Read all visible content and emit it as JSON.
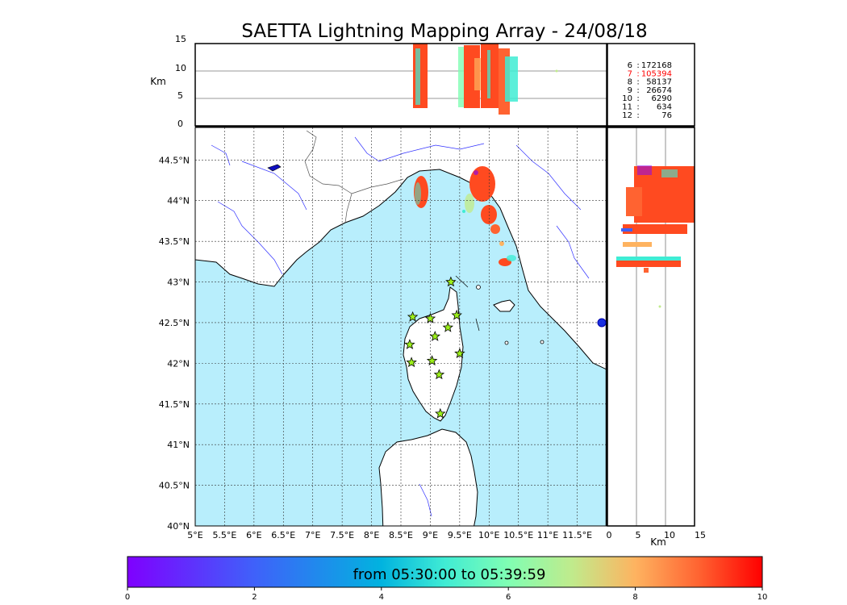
{
  "title": "SAETTA Lightning Mapping Array - 24/08/18",
  "altitude_panel": {
    "ylabel": "Km",
    "yticks": [
      "15",
      "10",
      "5",
      "0"
    ]
  },
  "side_panel": {
    "xlabel": "Km",
    "xticks": [
      "0",
      "5",
      "10",
      "15"
    ]
  },
  "map": {
    "lon_ticks": [
      "5°E",
      "5.5°E",
      "6°E",
      "6.5°E",
      "7°E",
      "7.5°E",
      "8°E",
      "8.5°E",
      "9°E",
      "9.5°E",
      "10°E",
      "10.5°E",
      "11°E",
      "11.5°E"
    ],
    "lat_ticks": [
      "44.5°N",
      "44°N",
      "43.5°N",
      "43°N",
      "42.5°N",
      "42°N",
      "41.5°N",
      "41°N",
      "40.5°N",
      "40°N"
    ],
    "sea_color": "#b8eefc",
    "grid": true,
    "station_marker": "star-icon"
  },
  "legend_counts": [
    {
      "n": "6",
      "count": "172168",
      "highlight": false
    },
    {
      "n": "7",
      "count": "105394",
      "highlight": true
    },
    {
      "n": "8",
      "count": "58137",
      "highlight": false
    },
    {
      "n": "9",
      "count": "26674",
      "highlight": false
    },
    {
      "n": "10",
      "count": "6290",
      "highlight": false
    },
    {
      "n": "11",
      "count": "634",
      "highlight": false
    },
    {
      "n": "12",
      "count": "76",
      "highlight": false
    }
  ],
  "colorbar": {
    "label": "from 05:30:00 to 05:39:59",
    "ticks": [
      "0",
      "2",
      "4",
      "6",
      "8",
      "10"
    ]
  },
  "colors": {
    "accent_red": "#ff0000",
    "sea": "#b8eefc",
    "flash": "#ff4a20",
    "stations": "#9cf01a"
  }
}
